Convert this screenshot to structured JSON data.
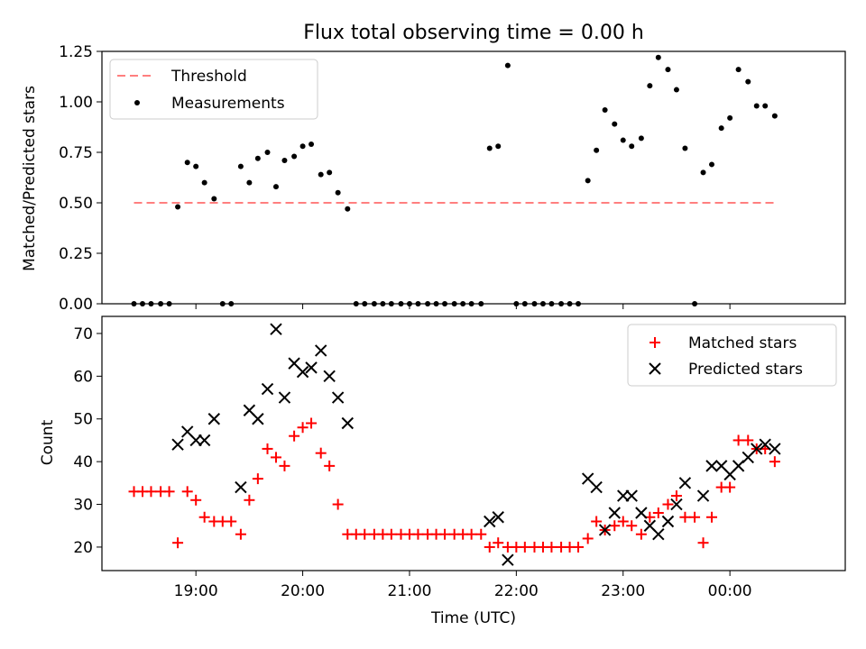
{
  "figure": {
    "title": "Flux total observing time = 0.00 h"
  },
  "chart_data": [
    {
      "type": "scatter",
      "panel": "top",
      "ylabel": "Matched/Predicted stars",
      "xlabel": "",
      "x_unit": "hours since 00:00 UTC (values >= 24 are after midnight)",
      "xlim": [
        18.12,
        25.08
      ],
      "ylim": [
        0,
        1.25
      ],
      "yticks": [
        0.0,
        0.25,
        0.5,
        0.75,
        1.0,
        1.25
      ],
      "ytick_labels": [
        "0.00",
        "0.25",
        "0.50",
        "0.75",
        "1.00",
        "1.25"
      ],
      "grid": false,
      "legend": "top-left",
      "threshold": {
        "name": "Threshold",
        "value": 0.5,
        "x_range": [
          18.42,
          24.42
        ],
        "color": "#ff7f7f",
        "style": "dashed"
      },
      "series": [
        {
          "name": "Measurements",
          "color": "#000000",
          "marker": "dot",
          "x": [
            18.42,
            18.5,
            18.58,
            18.67,
            18.75,
            18.83,
            18.92,
            19.0,
            19.08,
            19.17,
            19.25,
            19.33,
            19.42,
            19.5,
            19.58,
            19.67,
            19.75,
            19.83,
            19.92,
            20.0,
            20.08,
            20.17,
            20.25,
            20.33,
            20.42,
            20.5,
            20.58,
            20.67,
            20.75,
            20.83,
            20.92,
            21.0,
            21.08,
            21.17,
            21.25,
            21.33,
            21.42,
            21.5,
            21.58,
            21.67,
            21.75,
            21.83,
            21.92,
            22.0,
            22.08,
            22.17,
            22.25,
            22.33,
            22.42,
            22.5,
            22.58,
            22.67,
            22.75,
            22.83,
            22.92,
            23.0,
            23.08,
            23.17,
            23.25,
            23.33,
            23.42,
            23.5,
            23.58,
            23.67,
            23.75,
            23.83,
            23.92,
            24.0,
            24.08,
            24.17,
            24.25,
            24.33,
            24.42
          ],
          "y": [
            0.0,
            0.0,
            0.0,
            0.0,
            0.0,
            0.48,
            0.7,
            0.68,
            0.6,
            0.52,
            0.0,
            0.0,
            0.68,
            0.6,
            0.72,
            0.75,
            0.58,
            0.71,
            0.73,
            0.78,
            0.79,
            0.64,
            0.65,
            0.55,
            0.47,
            0.0,
            0.0,
            0.0,
            0.0,
            0.0,
            0.0,
            0.0,
            0.0,
            0.0,
            0.0,
            0.0,
            0.0,
            0.0,
            0.0,
            0.0,
            0.77,
            0.78,
            1.18,
            0.0,
            0.0,
            0.0,
            0.0,
            0.0,
            0.0,
            0.0,
            0.0,
            0.61,
            0.76,
            0.96,
            0.89,
            0.81,
            0.78,
            0.82,
            1.08,
            1.22,
            1.16,
            1.06,
            0.77,
            0.0,
            0.65,
            0.69,
            0.87,
            0.92,
            1.16,
            1.1,
            0.98,
            0.98,
            0.93
          ]
        }
      ]
    },
    {
      "type": "scatter",
      "panel": "bottom",
      "xlabel": "Time (UTC)",
      "ylabel": "Count",
      "x_unit": "hours since 00:00 UTC (values >= 24 are after midnight)",
      "xlim": [
        18.12,
        25.08
      ],
      "ylim": [
        14.5,
        74
      ],
      "xticks": [
        19,
        20,
        21,
        22,
        23,
        24
      ],
      "xtick_labels": [
        "19:00",
        "20:00",
        "21:00",
        "22:00",
        "23:00",
        "00:00"
      ],
      "yticks": [
        20,
        30,
        40,
        50,
        60,
        70
      ],
      "ytick_labels": [
        "20",
        "30",
        "40",
        "50",
        "60",
        "70"
      ],
      "grid": false,
      "legend": "top-right",
      "series": [
        {
          "name": "Matched stars",
          "color": "#ff0000",
          "marker": "plus",
          "x": [
            18.42,
            18.5,
            18.58,
            18.67,
            18.75,
            18.83,
            18.92,
            19.0,
            19.08,
            19.17,
            19.25,
            19.33,
            19.42,
            19.5,
            19.58,
            19.67,
            19.75,
            19.83,
            19.92,
            20.0,
            20.08,
            20.17,
            20.25,
            20.33,
            20.42,
            20.5,
            20.58,
            20.67,
            20.75,
            20.83,
            20.92,
            21.0,
            21.08,
            21.17,
            21.25,
            21.33,
            21.42,
            21.5,
            21.58,
            21.67,
            21.75,
            21.83,
            21.92,
            22.0,
            22.08,
            22.17,
            22.25,
            22.33,
            22.42,
            22.5,
            22.58,
            22.67,
            22.75,
            22.83,
            22.92,
            23.0,
            23.08,
            23.17,
            23.25,
            23.33,
            23.42,
            23.5,
            23.58,
            23.67,
            23.75,
            23.83,
            23.92,
            24.0,
            24.08,
            24.17,
            24.25,
            24.33,
            24.42
          ],
          "y": [
            33,
            33,
            33,
            33,
            33,
            21,
            33,
            31,
            27,
            26,
            26,
            26,
            23,
            31,
            36,
            43,
            41,
            39,
            46,
            48,
            49,
            42,
            39,
            30,
            23,
            23,
            23,
            23,
            23,
            23,
            23,
            23,
            23,
            23,
            23,
            23,
            23,
            23,
            23,
            23,
            20,
            21,
            20,
            20,
            20,
            20,
            20,
            20,
            20,
            20,
            20,
            22,
            26,
            24,
            25,
            26,
            25,
            23,
            27,
            28,
            30,
            32,
            27,
            27,
            21,
            27,
            34,
            34,
            45,
            45,
            43,
            43,
            40
          ]
        },
        {
          "name": "Predicted stars",
          "color": "#000000",
          "marker": "x",
          "x": [
            18.83,
            18.92,
            19.0,
            19.08,
            19.17,
            19.42,
            19.5,
            19.58,
            19.67,
            19.75,
            19.83,
            19.92,
            20.0,
            20.08,
            20.17,
            20.25,
            20.33,
            20.42,
            21.75,
            21.83,
            21.92,
            22.67,
            22.75,
            22.83,
            22.92,
            23.0,
            23.08,
            23.17,
            23.25,
            23.33,
            23.42,
            23.5,
            23.58,
            23.75,
            23.83,
            23.92,
            24.0,
            24.08,
            24.17,
            24.25,
            24.33,
            24.42
          ],
          "y": [
            44,
            47,
            45,
            45,
            50,
            34,
            52,
            50,
            57,
            71,
            55,
            63,
            61,
            62,
            66,
            60,
            55,
            49,
            26,
            27,
            17,
            36,
            34,
            24,
            28,
            32,
            32,
            28,
            25,
            23,
            26,
            30,
            35,
            32,
            39,
            39,
            37,
            39,
            41,
            43,
            44,
            43
          ]
        }
      ]
    }
  ]
}
